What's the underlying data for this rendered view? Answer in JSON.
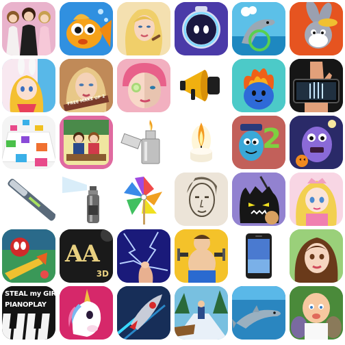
{
  "apps": [
    {
      "id": "princess-dress-up",
      "icon": "princess-dolls-icon",
      "bg": "#e7a9c6"
    },
    {
      "id": "goldfish",
      "icon": "goldfish-icon",
      "bg": "#2f86d8"
    },
    {
      "id": "blonde-makeover",
      "icon": "blonde-girl-icon",
      "bg": "#f3d9a0"
    },
    {
      "id": "space-robot",
      "icon": "robot-eye-icon",
      "bg": "#5a48b8"
    },
    {
      "id": "dolphin-show",
      "icon": "dolphin-hoop-icon",
      "bg": "#3cb0dc"
    },
    {
      "id": "bugs-bunny",
      "icon": "bunny-cartoon-icon",
      "bg": "#e85a22"
    },
    {
      "id": "anime-bunny-girl",
      "icon": "anime-girl-icon",
      "bg": "#7ad0f0"
    },
    {
      "id": "free-makeup",
      "icon": "makeup-girl-icon",
      "bg": "#b67c50",
      "label": "FREE MAKE UP 2"
    },
    {
      "id": "face-spa",
      "icon": "face-spa-icon",
      "bg": "#f4a6b8"
    },
    {
      "id": "megaphone",
      "icon": "megaphone-icon",
      "bg": "#ffffff"
    },
    {
      "id": "dumb-ways-fire",
      "icon": "fire-monster-icon",
      "bg": "#4bc8c6"
    },
    {
      "id": "xray-hand",
      "icon": "xray-hand-icon",
      "bg": "#1a1a1a"
    },
    {
      "id": "piano-tiles-dance",
      "icon": "dance-tiles-icon",
      "bg": "#f2f2f2"
    },
    {
      "id": "kissing-classroom",
      "icon": "kissing-couple-icon",
      "bg": "#e26ea0"
    },
    {
      "id": "zippo-lighter",
      "icon": "lighter-icon",
      "bg": "#ffffff"
    },
    {
      "id": "candle",
      "icon": "candle-icon",
      "bg": "#ffffff"
    },
    {
      "id": "dumb-ways-2",
      "icon": "police-bean-icon",
      "bg": "#c4605a",
      "label": "2"
    },
    {
      "id": "halloween-monster",
      "icon": "purple-monster-icon",
      "bg": "#2b2a6a"
    },
    {
      "id": "lighter-stick",
      "icon": "stick-lighter-icon",
      "bg": "#ffffff"
    },
    {
      "id": "spray-can",
      "icon": "spray-can-icon",
      "bg": "#ffffff"
    },
    {
      "id": "pinwheel",
      "icon": "pinwheel-icon",
      "bg": "#ffffff"
    },
    {
      "id": "pencil-sketch",
      "icon": "sketch-face-icon",
      "bg": "#e8e0d6"
    },
    {
      "id": "shadow-monster",
      "icon": "shadow-monster-icon",
      "bg": "#8c7cc8"
    },
    {
      "id": "princess-doll",
      "icon": "doll-princess-icon",
      "bg": "#f8d0e0"
    },
    {
      "id": "spider-hero",
      "icon": "spider-hero-icon",
      "bg": "#3a9a5a"
    },
    {
      "id": "aa-3d",
      "icon": "aa-logo-icon",
      "bg": "#1d1d1d",
      "label": "AA",
      "sub": "3D"
    },
    {
      "id": "electric-screen",
      "icon": "lightning-finger-icon",
      "bg": "#2a2aa0"
    },
    {
      "id": "fitness-guy",
      "icon": "fitness-man-icon",
      "bg": "#f6c12a"
    },
    {
      "id": "smartphone",
      "icon": "phone-icon",
      "bg": "#ffffff"
    },
    {
      "id": "brunette-girl",
      "icon": "brunette-girl-icon",
      "bg": "#8ac66a"
    },
    {
      "id": "steal-my-girl-piano",
      "icon": "piano-keys-icon",
      "bg": "#151515",
      "label": "STEAL my GIRL",
      "sub": "PIANOPLAY"
    },
    {
      "id": "unicorn",
      "icon": "unicorn-icon",
      "bg": "#d8286a"
    },
    {
      "id": "jet-racer",
      "icon": "jet-icon",
      "bg": "#18305a"
    },
    {
      "id": "winter-run",
      "icon": "runner-icon",
      "bg": "#70b8dc"
    },
    {
      "id": "dolphin-underwater",
      "icon": "dolphin-icon",
      "bg": "#2880b8"
    },
    {
      "id": "baby-family",
      "icon": "baby-icon",
      "bg": "#3a7a3a"
    }
  ]
}
